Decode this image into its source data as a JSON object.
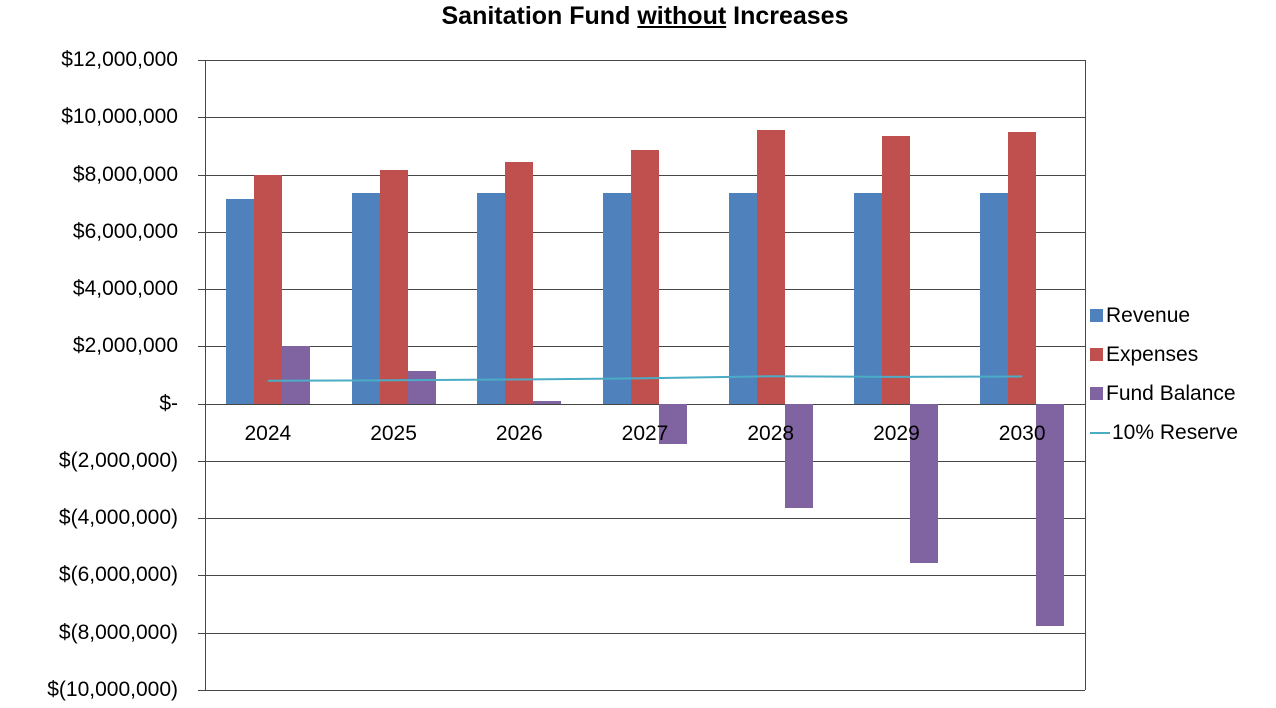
{
  "title": {
    "prefix": "Sanitation Fund ",
    "underlined": "without",
    "suffix": " Increases"
  },
  "legend": {
    "items": [
      {
        "label": "Revenue",
        "color": "#4F81BD",
        "marker": "square"
      },
      {
        "label": "Expenses",
        "color": "#C0504D",
        "marker": "square"
      },
      {
        "label": "Fund Balance",
        "color": "#8064A2",
        "marker": "square"
      },
      {
        "label": "10% Reserve",
        "color": "#4BACC6",
        "marker": "line"
      }
    ]
  },
  "chart_data": {
    "type": "bar",
    "title": "Sanitation Fund without Increases",
    "categories": [
      "2024",
      "2025",
      "2026",
      "2027",
      "2028",
      "2029",
      "2030"
    ],
    "series": [
      {
        "name": "Revenue",
        "type": "bar",
        "color": "#4F81BD",
        "values": [
          7150000,
          7350000,
          7350000,
          7350000,
          7350000,
          7350000,
          7350000
        ]
      },
      {
        "name": "Expenses",
        "type": "bar",
        "color": "#C0504D",
        "values": [
          8000000,
          8150000,
          8450000,
          8850000,
          9550000,
          9350000,
          9500000
        ]
      },
      {
        "name": "Fund Balance",
        "type": "bar",
        "color": "#8064A2",
        "values": [
          2000000,
          1150000,
          100000,
          -1400000,
          -3650000,
          -5550000,
          -7750000
        ]
      },
      {
        "name": "10% Reserve",
        "type": "line",
        "color": "#4BACC6",
        "values": [
          800000,
          815000,
          845000,
          885000,
          955000,
          935000,
          950000
        ]
      }
    ],
    "ylim": [
      -10000000,
      12000000
    ],
    "ytick_step": 2000000,
    "ytick_labels": [
      "$12,000,000",
      "$10,000,000",
      "$8,000,000",
      "$6,000,000",
      "$4,000,000",
      "$2,000,000",
      "$-",
      "$(2,000,000)",
      "$(4,000,000)",
      "$(6,000,000)",
      "$(8,000,000)",
      "$(10,000,000)"
    ],
    "grid": true,
    "legend_position": "right",
    "xlabel": "",
    "ylabel": ""
  }
}
